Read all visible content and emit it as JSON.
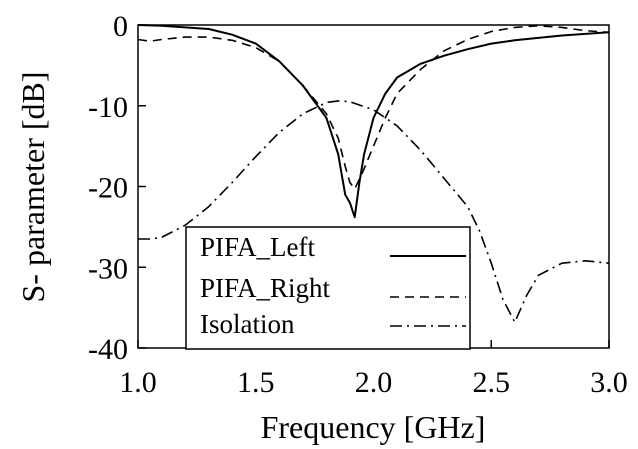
{
  "chart_data": {
    "type": "line",
    "title": "",
    "xlabel": "Frequency [GHz]",
    "ylabel": "S- parameter [dB]",
    "xlim": [
      1.0,
      3.0
    ],
    "ylim": [
      -40,
      0
    ],
    "x_ticks": [
      "1.0",
      "1.5",
      "2.0",
      "2.5",
      "3.0"
    ],
    "y_ticks": [
      "0",
      "-10",
      "-20",
      "-30",
      "-40"
    ],
    "grid": false,
    "legend_position": "bottom-left",
    "series": [
      {
        "name": "PIFA_Left",
        "style": "solid",
        "color": "#000000",
        "x": [
          1.0,
          1.1,
          1.2,
          1.3,
          1.4,
          1.5,
          1.6,
          1.7,
          1.8,
          1.85,
          1.88,
          1.9,
          1.92,
          1.94,
          1.96,
          2.0,
          2.05,
          2.1,
          2.2,
          2.3,
          2.4,
          2.5,
          2.6,
          2.7,
          2.8,
          2.9,
          3.0
        ],
        "y": [
          0,
          -0.1,
          -0.3,
          -0.5,
          -1.2,
          -2.3,
          -4.5,
          -7.5,
          -11.5,
          -16.0,
          -21.0,
          -22.0,
          -23.8,
          -19.5,
          -16.0,
          -11.5,
          -8.5,
          -6.5,
          -4.8,
          -3.8,
          -3.0,
          -2.3,
          -1.9,
          -1.6,
          -1.3,
          -1.1,
          -0.9
        ]
      },
      {
        "name": "PIFA_Right",
        "style": "dashed",
        "color": "#000000",
        "x": [
          1.0,
          1.05,
          1.1,
          1.2,
          1.3,
          1.4,
          1.5,
          1.6,
          1.7,
          1.8,
          1.85,
          1.88,
          1.9,
          1.92,
          1.95,
          2.0,
          2.05,
          2.1,
          2.2,
          2.3,
          2.4,
          2.5,
          2.6,
          2.7,
          2.8,
          2.9,
          3.0
        ],
        "y": [
          -1.8,
          -2.0,
          -1.8,
          -1.5,
          -1.5,
          -1.9,
          -2.8,
          -4.5,
          -7.5,
          -11.0,
          -14.0,
          -17.5,
          -19.5,
          -20.3,
          -18.5,
          -15.0,
          -11.5,
          -8.5,
          -5.5,
          -3.2,
          -1.8,
          -0.8,
          -0.3,
          -0.1,
          -0.3,
          -0.7,
          -0.9
        ]
      },
      {
        "name": "Isolation",
        "style": "dashdot",
        "color": "#000000",
        "x": [
          1.0,
          1.05,
          1.1,
          1.2,
          1.3,
          1.4,
          1.5,
          1.6,
          1.7,
          1.8,
          1.85,
          1.9,
          2.0,
          2.1,
          2.2,
          2.3,
          2.4,
          2.45,
          2.5,
          2.55,
          2.6,
          2.65,
          2.7,
          2.8,
          2.9,
          3.0
        ],
        "y": [
          -26.5,
          -26.5,
          -26.3,
          -24.8,
          -22.5,
          -19.5,
          -16.3,
          -13.3,
          -11.0,
          -9.6,
          -9.4,
          -9.5,
          -10.5,
          -12.5,
          -15.5,
          -19.0,
          -22.5,
          -25.5,
          -29.5,
          -34.0,
          -36.8,
          -33.5,
          -31.0,
          -29.5,
          -29.2,
          -29.5
        ]
      }
    ]
  }
}
